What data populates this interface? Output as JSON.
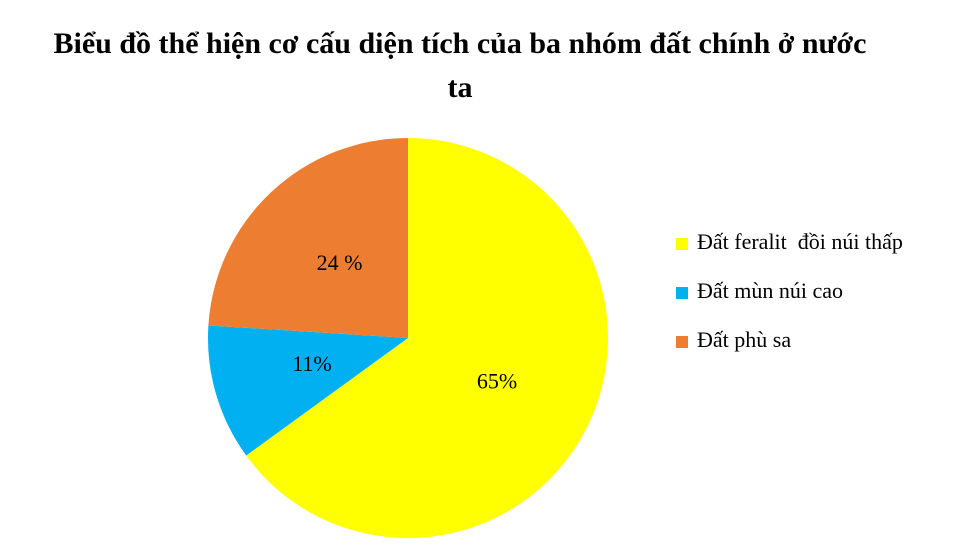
{
  "chart_data": {
    "type": "pie",
    "title": "Biểu đồ thể hiện cơ cấu diện tích của ba nhóm đất chính ở nước ta",
    "categories": [
      "Đất feralit  đồi núi thấp",
      "Đất mùn núi cao",
      "Đất phù sa"
    ],
    "values": [
      65,
      11,
      24
    ],
    "value_labels": [
      "65%",
      "11%",
      "24 %"
    ],
    "colors": [
      "#ffff00",
      "#00b0f0",
      "#ed7d31"
    ],
    "legend": "right"
  }
}
